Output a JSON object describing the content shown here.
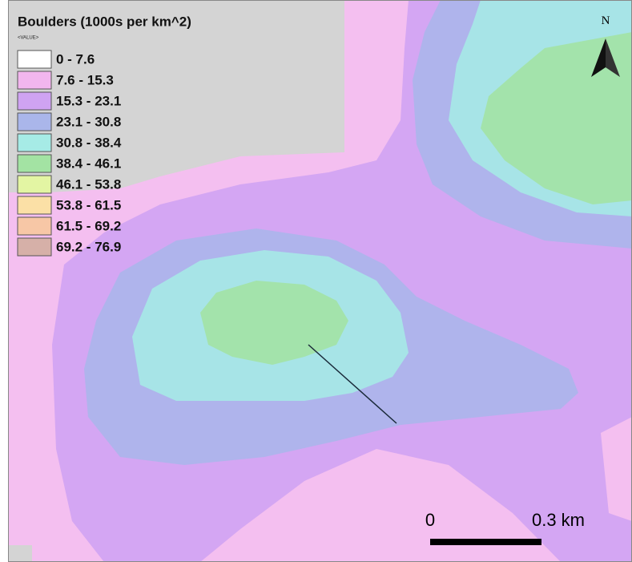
{
  "legend": {
    "title": "Boulders (1000s per km^2)",
    "subtitle": "<VALUE>",
    "items": [
      {
        "label": "0 - 7.6",
        "color": "#ffffff"
      },
      {
        "label": "7.6 - 15.3",
        "color": "#f2b6ee"
      },
      {
        "label": "15.3 - 23.1",
        "color": "#cfa3f2"
      },
      {
        "label": "23.1 - 30.8",
        "color": "#aab6ea"
      },
      {
        "label": "30.8 - 38.4",
        "color": "#a6ebe6"
      },
      {
        "label": "38.4 - 46.1",
        "color": "#a3e3a3"
      },
      {
        "label": "46.1 - 53.8",
        "color": "#e3f5a3"
      },
      {
        "label": "53.8 - 61.5",
        "color": "#fbe0a6"
      },
      {
        "label": "61.5 - 69.2",
        "color": "#f7c7a6"
      },
      {
        "label": "69.2 - 76.9",
        "color": "#d6b0a8"
      }
    ]
  },
  "scale_bar": {
    "start_label": "0",
    "end_label": "0.3 km"
  },
  "north_arrow": {
    "label": "N"
  }
}
